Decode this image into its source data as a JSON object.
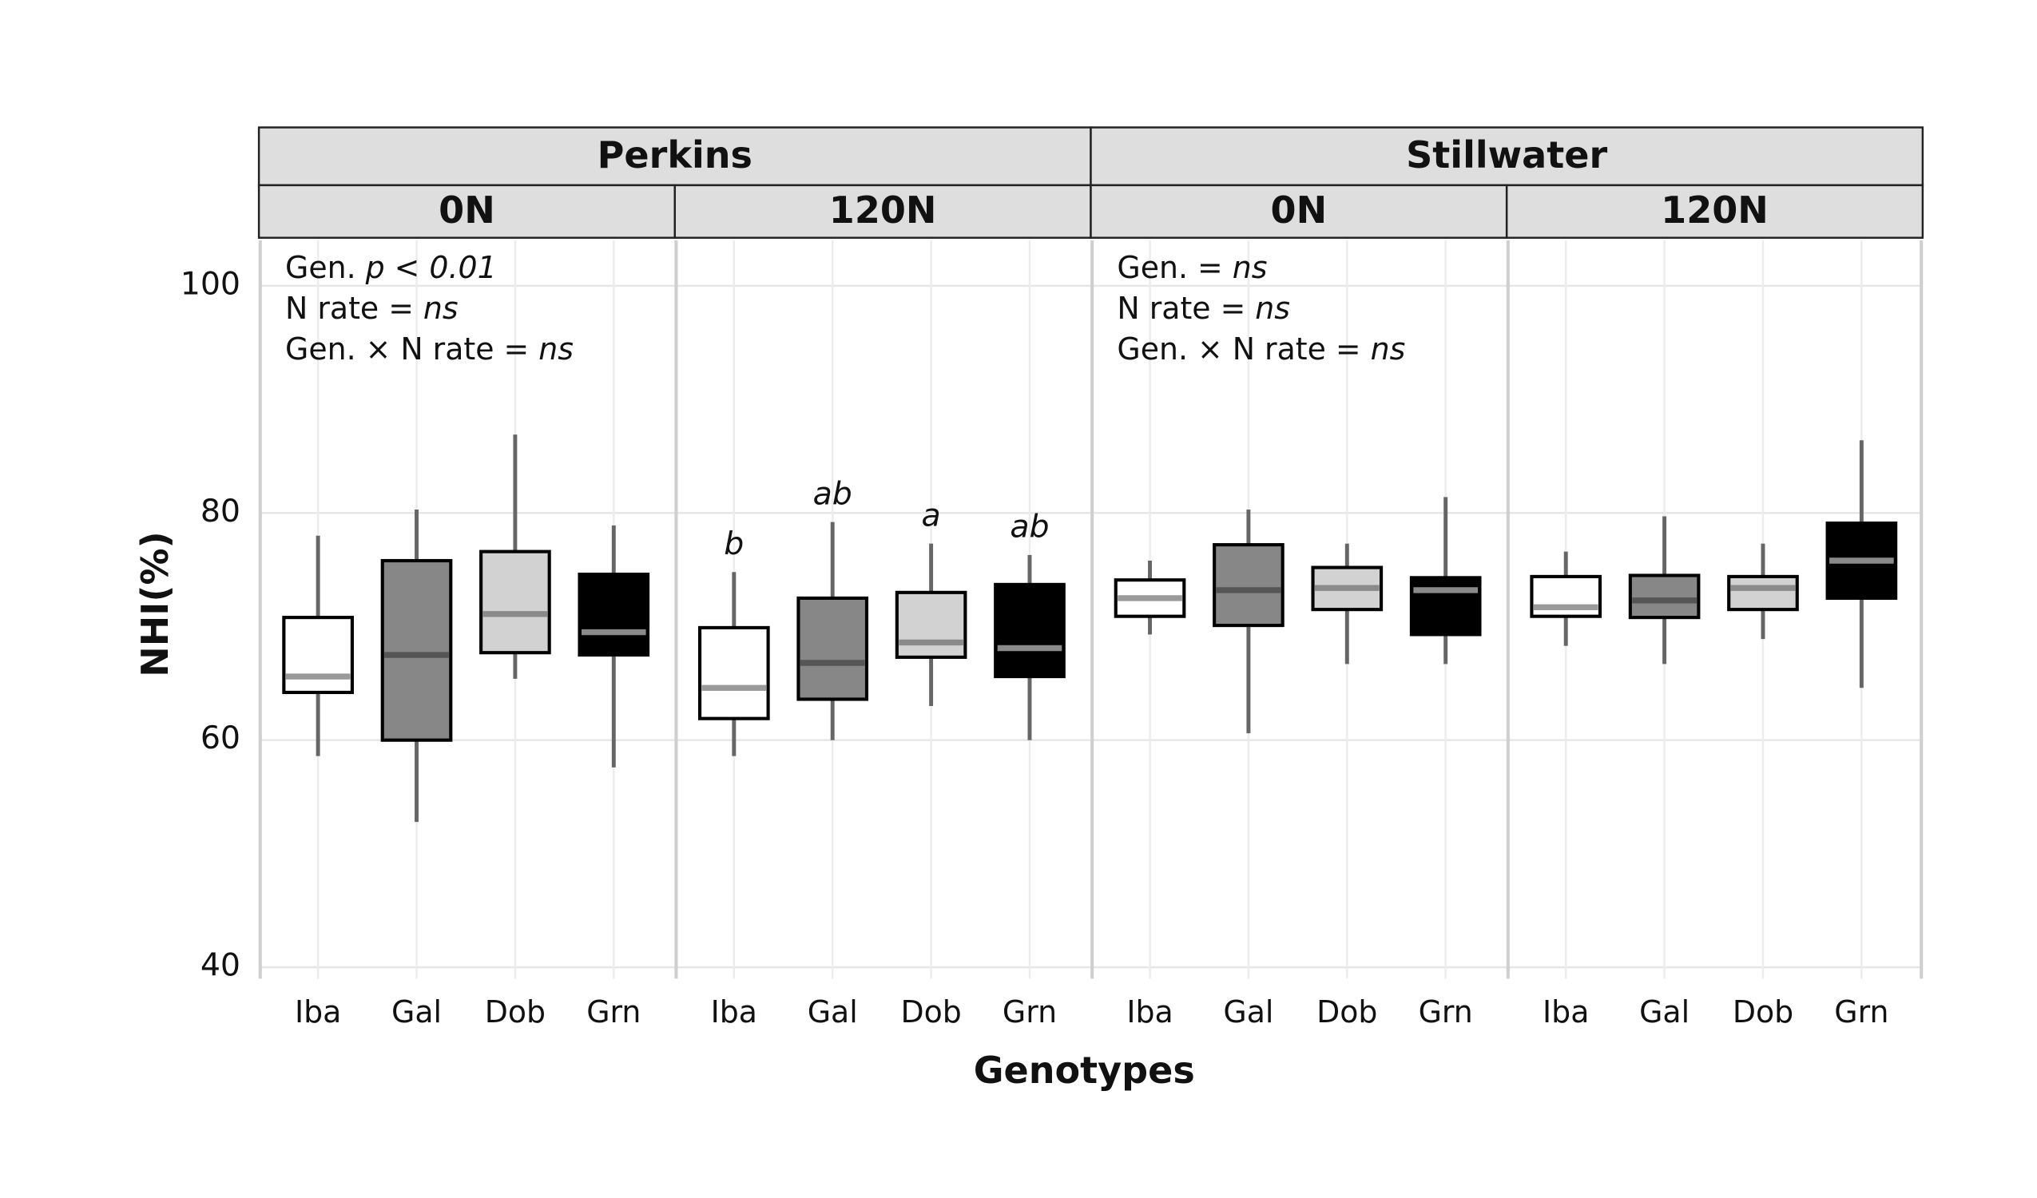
{
  "chart_data": {
    "type": "boxplot",
    "y_label": "NHI(%)",
    "x_label": "Genotypes",
    "ylim": [
      39,
      104
    ],
    "yticks": [
      40,
      60,
      80,
      100
    ],
    "grid": true,
    "colors": [
      "#ffffff",
      "#878787",
      "#d2d2d2",
      "#000000"
    ],
    "median_colors": [
      "#9a9a9a",
      "#555555",
      "#8a8a8a",
      "#8a8a8a"
    ],
    "sites": [
      {
        "name": "Perkins",
        "panels": [
          {
            "name": "0N",
            "annotation": [
              [
                {
                  "text": "Gen. "
                },
                {
                  "text": "p < 0.01",
                  "italic": true
                }
              ],
              [
                {
                  "text": "N rate = "
                },
                {
                  "text": "ns",
                  "italic": true
                }
              ],
              [
                {
                  "text": "Gen. × N rate = "
                },
                {
                  "text": "ns",
                  "italic": true
                }
              ]
            ],
            "categories": [
              "Iba",
              "Gal",
              "Dob",
              "Grn"
            ],
            "max": [
              78.0,
              80.3,
              86.9,
              78.9
            ],
            "q3": [
              70.8,
              75.8,
              76.6,
              74.6
            ],
            "median": [
              65.6,
              67.5,
              71.1,
              69.5
            ],
            "q1": [
              64.2,
              60.0,
              67.7,
              67.5
            ],
            "min": [
              58.6,
              52.8,
              65.4,
              57.6
            ]
          },
          {
            "name": "120N",
            "categories": [
              "Iba",
              "Gal",
              "Dob",
              "Grn"
            ],
            "letters": [
              "b",
              "ab",
              "a",
              "ab"
            ],
            "max": [
              74.8,
              79.2,
              77.3,
              76.3
            ],
            "q3": [
              69.9,
              72.5,
              73.0,
              73.7
            ],
            "median": [
              64.6,
              66.8,
              68.6,
              68.1
            ],
            "q1": [
              61.9,
              63.6,
              67.3,
              65.6
            ],
            "min": [
              58.6,
              60.0,
              63.0,
              60.0
            ]
          }
        ]
      },
      {
        "name": "Stillwater",
        "panels": [
          {
            "name": "0N",
            "annotation": [
              [
                {
                  "text": "Gen. = "
                },
                {
                  "text": "ns",
                  "italic": true
                }
              ],
              [
                {
                  "text": "N rate = "
                },
                {
                  "text": "ns",
                  "italic": true
                }
              ],
              [
                {
                  "text": "Gen. × N rate = "
                },
                {
                  "text": "ns",
                  "italic": true
                }
              ]
            ],
            "categories": [
              "Iba",
              "Gal",
              "Dob",
              "Grn"
            ],
            "max": [
              75.8,
              80.3,
              77.3,
              81.4
            ],
            "q3": [
              74.1,
              77.2,
              75.2,
              74.3
            ],
            "median": [
              72.5,
              73.2,
              73.4,
              73.2
            ],
            "q1": [
              70.9,
              70.1,
              71.5,
              69.3
            ],
            "min": [
              69.3,
              60.6,
              66.7,
              66.7
            ]
          },
          {
            "name": "120N",
            "categories": [
              "Iba",
              "Gal",
              "Dob",
              "Grn"
            ],
            "max": [
              76.6,
              79.7,
              77.3,
              86.4
            ],
            "q3": [
              74.4,
              74.5,
              74.4,
              79.1
            ],
            "median": [
              71.7,
              72.3,
              73.4,
              75.8
            ],
            "q1": [
              70.9,
              70.8,
              71.5,
              72.5
            ],
            "min": [
              68.3,
              66.7,
              68.9,
              64.6
            ]
          }
        ]
      }
    ]
  }
}
